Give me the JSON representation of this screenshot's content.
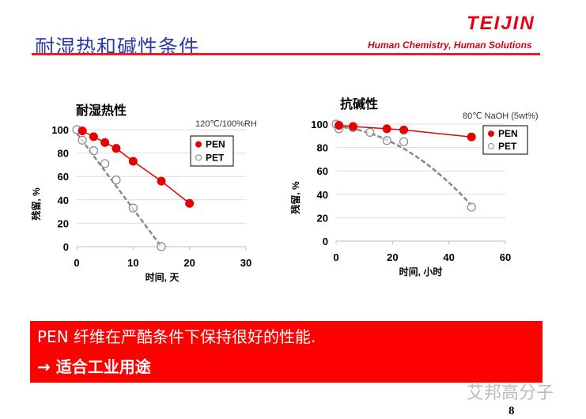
{
  "header": {
    "title": "耐湿热和碱性条件",
    "logo": "TEIJIN",
    "tagline": "Human Chemistry, Human Solutions"
  },
  "banner": {
    "line1": "PEN 纤维在严酷条件下保持很好的性能.",
    "line2": "→ 适合工业用途"
  },
  "watermark": "艾邦高分子",
  "page_number": "8",
  "colors": {
    "accent": "#ff0000",
    "title": "#2b3aa8",
    "pen": "#e60000",
    "pet": "#888888"
  },
  "chart_data": [
    {
      "type": "scatter",
      "title": "耐湿热性",
      "condition": "120℃/100%RH",
      "xlabel": "时间, 天",
      "ylabel": "残留, %",
      "xlim": [
        0,
        30
      ],
      "ylim": [
        0,
        100
      ],
      "xticks": [
        "0",
        "10",
        "20",
        "30"
      ],
      "yticks": [
        "0",
        "20",
        "40",
        "60",
        "80",
        "100"
      ],
      "grid": true,
      "legend": "top-right",
      "series": [
        {
          "name": "PEN",
          "x": [
            1,
            3,
            5,
            7,
            10,
            15,
            20
          ],
          "y": [
            99,
            94,
            89,
            84,
            73,
            56,
            37
          ],
          "marker": "filled-circle",
          "line": "solid"
        },
        {
          "name": "PET",
          "x": [
            0,
            1,
            3,
            5,
            7,
            10,
            15
          ],
          "y": [
            100,
            91,
            82,
            71,
            57,
            33,
            0
          ],
          "marker": "open-circle",
          "line": "dashed-trend"
        }
      ]
    },
    {
      "type": "scatter",
      "title": "抗碱性",
      "condition": "80℃ NaOH (5wt%)",
      "xlabel": "时间, 小时",
      "ylabel": "残留, %",
      "xlim": [
        0,
        60
      ],
      "ylim": [
        0,
        100
      ],
      "xticks": [
        "0",
        "20",
        "40",
        "60"
      ],
      "yticks": [
        "0",
        "20",
        "40",
        "60",
        "80",
        "100"
      ],
      "grid": true,
      "legend": "top-right",
      "series": [
        {
          "name": "PEN",
          "x": [
            1,
            6,
            18,
            24,
            48
          ],
          "y": [
            99,
            98,
            96,
            95,
            89
          ],
          "marker": "filled-circle",
          "line": "solid"
        },
        {
          "name": "PET",
          "x": [
            0,
            1,
            6,
            12,
            18,
            24,
            48
          ],
          "y": [
            100,
            96,
            97,
            93,
            86,
            85,
            29
          ],
          "marker": "open-circle",
          "line": "dashed-trend"
        }
      ]
    }
  ]
}
